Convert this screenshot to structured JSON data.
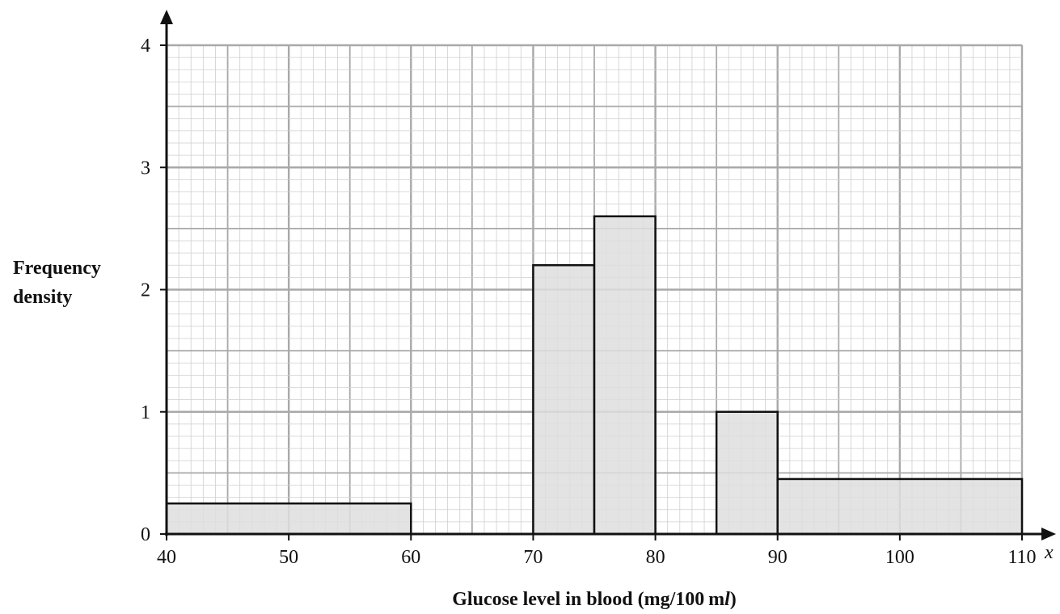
{
  "chart_data": {
    "type": "bar",
    "subtype": "histogram",
    "xlabel": "Glucose level in blood (mg/100 ml)",
    "xlabel_parts": {
      "main": "Glucose level in blood (mg/100 m",
      "unit_italic": "l",
      "close": ")"
    },
    "ylabel_lines": [
      "Frequency",
      "density"
    ],
    "x_axis_var": "x",
    "xlim": [
      40,
      110
    ],
    "ylim": [
      0,
      4
    ],
    "x_ticks": [
      "40",
      "50",
      "60",
      "70",
      "80",
      "90",
      "100",
      "110"
    ],
    "y_ticks": [
      "0",
      "1",
      "2",
      "3",
      "4"
    ],
    "grid": true,
    "bars": [
      {
        "x0": 40,
        "x1": 60,
        "value": 0.25
      },
      {
        "x0": 70,
        "x1": 75,
        "value": 2.2
      },
      {
        "x0": 75,
        "x1": 80,
        "value": 2.6
      },
      {
        "x0": 85,
        "x1": 90,
        "value": 1.0
      },
      {
        "x0": 90,
        "x1": 110,
        "value": 0.45
      }
    ],
    "colors": {
      "bar_fill": "#dedede",
      "bar_stroke": "#111111",
      "grid_major": "#a9a9a9",
      "grid_minor": "#cfcfcf",
      "axis": "#111111"
    }
  }
}
